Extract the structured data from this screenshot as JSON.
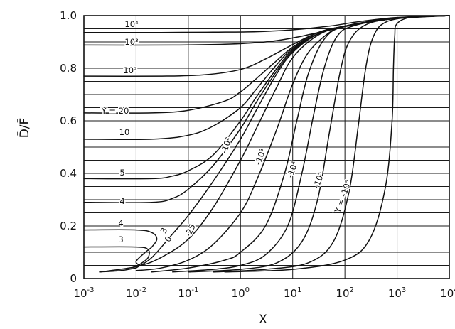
{
  "chart_data": {
    "type": "line",
    "title": "",
    "xlabel": "X",
    "ylabel": "D̄/F̄",
    "xscale": "log",
    "xlim": [
      0.001,
      10000
    ],
    "ylim": [
      0,
      1.0
    ],
    "grid": true,
    "x_ticks": [
      {
        "base": "10",
        "exp": "-3"
      },
      {
        "base": "10",
        "exp": "-2"
      },
      {
        "base": "10",
        "exp": "-1"
      },
      {
        "base": "10",
        "exp": "0"
      },
      {
        "base": "10",
        "exp": "1"
      },
      {
        "base": "10",
        "exp": "2"
      },
      {
        "base": "10",
        "exp": "3"
      },
      {
        "base": "10",
        "exp": "4"
      }
    ],
    "y_ticks": [
      "0",
      "0.2",
      "0.4",
      "0.6",
      "0.8",
      "1.0"
    ],
    "series": [
      {
        "label": "10⁴",
        "points": [
          [
            0.001,
            0.936
          ],
          [
            0.03,
            0.936
          ],
          [
            0.3,
            0.937
          ],
          [
            2,
            0.939
          ],
          [
            10,
            0.946
          ],
          [
            50,
            0.96
          ],
          [
            200,
            0.978
          ],
          [
            1000,
            0.993
          ],
          [
            10000,
            1.0
          ]
        ]
      },
      {
        "label": "10³",
        "points": [
          [
            0.001,
            0.888
          ],
          [
            0.05,
            0.888
          ],
          [
            0.5,
            0.891
          ],
          [
            3,
            0.9
          ],
          [
            10,
            0.915
          ],
          [
            30,
            0.935
          ],
          [
            100,
            0.958
          ],
          [
            500,
            0.985
          ],
          [
            10000,
            1.0
          ]
        ]
      },
      {
        "label": "10²",
        "points": [
          [
            0.001,
            0.77
          ],
          [
            0.03,
            0.77
          ],
          [
            0.2,
            0.775
          ],
          [
            1,
            0.795
          ],
          [
            3,
            0.835
          ],
          [
            10,
            0.89
          ],
          [
            30,
            0.935
          ],
          [
            100,
            0.96
          ],
          [
            1000,
            0.99
          ],
          [
            10000,
            1.0
          ]
        ]
      },
      {
        "label": "Y = 20",
        "points": [
          [
            0.001,
            0.63
          ],
          [
            0.02,
            0.63
          ],
          [
            0.1,
            0.64
          ],
          [
            0.5,
            0.675
          ],
          [
            1,
            0.71
          ],
          [
            2,
            0.76
          ],
          [
            5,
            0.83
          ],
          [
            10,
            0.88
          ],
          [
            30,
            0.935
          ],
          [
            100,
            0.96
          ],
          [
            1000,
            0.99
          ],
          [
            10000,
            1.0
          ]
        ]
      },
      {
        "label": "10",
        "points": [
          [
            0.001,
            0.53
          ],
          [
            0.02,
            0.53
          ],
          [
            0.1,
            0.545
          ],
          [
            0.3,
            0.58
          ],
          [
            1,
            0.65
          ],
          [
            2,
            0.72
          ],
          [
            5,
            0.815
          ],
          [
            10,
            0.875
          ],
          [
            30,
            0.93
          ],
          [
            100,
            0.96
          ],
          [
            1000,
            0.99
          ],
          [
            10000,
            1.0
          ]
        ]
      },
      {
        "label": "5",
        "points": [
          [
            0.001,
            0.38
          ],
          [
            0.02,
            0.38
          ],
          [
            0.05,
            0.39
          ],
          [
            0.1,
            0.41
          ],
          [
            0.3,
            0.47
          ],
          [
            1,
            0.6
          ],
          [
            2,
            0.69
          ],
          [
            5,
            0.8
          ],
          [
            10,
            0.87
          ],
          [
            30,
            0.93
          ],
          [
            100,
            0.96
          ],
          [
            1000,
            0.99
          ],
          [
            10000,
            1.0
          ]
        ]
      },
      {
        "label": "4",
        "points": [
          [
            0.001,
            0.29
          ],
          [
            0.02,
            0.29
          ],
          [
            0.05,
            0.305
          ],
          [
            0.1,
            0.34
          ],
          [
            0.3,
            0.43
          ],
          [
            1,
            0.57
          ],
          [
            2,
            0.67
          ],
          [
            5,
            0.79
          ],
          [
            10,
            0.865
          ],
          [
            30,
            0.93
          ],
          [
            100,
            0.96
          ],
          [
            1000,
            0.99
          ],
          [
            10000,
            1.0
          ]
        ]
      },
      {
        "label": "3",
        "points": [
          [
            0.01,
            0.04
          ],
          [
            0.02,
            0.08
          ],
          [
            0.05,
            0.17
          ],
          [
            0.1,
            0.24
          ],
          [
            0.3,
            0.37
          ],
          [
            1,
            0.53
          ],
          [
            2,
            0.64
          ],
          [
            5,
            0.78
          ],
          [
            10,
            0.86
          ],
          [
            30,
            0.93
          ],
          [
            100,
            0.96
          ],
          [
            1000,
            0.99
          ],
          [
            10000,
            1.0
          ]
        ]
      },
      {
        "label": "0",
        "points": [
          [
            0.002,
            0.025
          ],
          [
            0.01,
            0.045
          ],
          [
            0.03,
            0.08
          ],
          [
            0.1,
            0.15
          ],
          [
            0.3,
            0.27
          ],
          [
            1,
            0.45
          ],
          [
            2,
            0.57
          ],
          [
            5,
            0.73
          ],
          [
            10,
            0.84
          ],
          [
            30,
            0.925
          ],
          [
            100,
            0.96
          ],
          [
            1000,
            0.99
          ],
          [
            10000,
            1.0
          ]
        ]
      },
      {
        "label": "-25",
        "points": [
          [
            0.01,
            0.03
          ],
          [
            0.03,
            0.04
          ],
          [
            0.1,
            0.07
          ],
          [
            0.3,
            0.13
          ],
          [
            1,
            0.25
          ],
          [
            2,
            0.37
          ],
          [
            5,
            0.57
          ],
          [
            10,
            0.74
          ],
          [
            20,
            0.86
          ],
          [
            50,
            0.935
          ],
          [
            100,
            0.96
          ],
          [
            1000,
            0.99
          ],
          [
            10000,
            1.0
          ]
        ]
      },
      {
        "label": "-10²",
        "points": [
          [
            0.02,
            0.025
          ],
          [
            0.1,
            0.04
          ],
          [
            0.5,
            0.07
          ],
          [
            1,
            0.1
          ],
          [
            3,
            0.2
          ],
          [
            7,
            0.4
          ],
          [
            12,
            0.6
          ],
          [
            20,
            0.78
          ],
          [
            40,
            0.91
          ],
          [
            100,
            0.96
          ],
          [
            1000,
            0.99
          ],
          [
            10000,
            1.0
          ]
        ]
      },
      {
        "label": "-10³",
        "points": [
          [
            0.05,
            0.025
          ],
          [
            0.3,
            0.035
          ],
          [
            1,
            0.05
          ],
          [
            3,
            0.09
          ],
          [
            8,
            0.2
          ],
          [
            15,
            0.4
          ],
          [
            25,
            0.62
          ],
          [
            40,
            0.8
          ],
          [
            70,
            0.92
          ],
          [
            150,
            0.962
          ],
          [
            1000,
            0.99
          ],
          [
            10000,
            1.0
          ]
        ]
      },
      {
        "label": "-10⁴",
        "points": [
          [
            0.1,
            0.025
          ],
          [
            1,
            0.035
          ],
          [
            5,
            0.06
          ],
          [
            15,
            0.14
          ],
          [
            30,
            0.3
          ],
          [
            50,
            0.55
          ],
          [
            80,
            0.78
          ],
          [
            120,
            0.9
          ],
          [
            250,
            0.965
          ],
          [
            1000,
            0.99
          ],
          [
            10000,
            1.0
          ]
        ]
      },
      {
        "label": "-10⁵",
        "points": [
          [
            0.3,
            0.025
          ],
          [
            3,
            0.035
          ],
          [
            20,
            0.06
          ],
          [
            60,
            0.14
          ],
          [
            120,
            0.33
          ],
          [
            180,
            0.58
          ],
          [
            250,
            0.8
          ],
          [
            350,
            0.92
          ],
          [
            600,
            0.975
          ],
          [
            2000,
            0.995
          ],
          [
            10000,
            1.0
          ]
        ]
      },
      {
        "label": "Y = -10⁶",
        "points": [
          [
            0.5,
            0.025
          ],
          [
            10,
            0.035
          ],
          [
            100,
            0.07
          ],
          [
            300,
            0.15
          ],
          [
            600,
            0.35
          ],
          [
            800,
            0.6
          ],
          [
            850,
            0.8
          ],
          [
            900,
            0.92
          ],
          [
            1000,
            0.97
          ],
          [
            2000,
            0.995
          ],
          [
            10000,
            1.0
          ]
        ]
      },
      {
        "label": "4",
        "points": [
          [
            0.001,
            0.185
          ],
          [
            0.01,
            0.185
          ],
          [
            0.02,
            0.175
          ],
          [
            0.025,
            0.15
          ],
          [
            0.02,
            0.12
          ],
          [
            0.015,
            0.1
          ],
          [
            0.01,
            0.065
          ],
          [
            0.012,
            0.05
          ]
        ]
      },
      {
        "label": "3",
        "points": [
          [
            0.001,
            0.12
          ],
          [
            0.01,
            0.12
          ],
          [
            0.017,
            0.11
          ],
          [
            0.017,
            0.08
          ],
          [
            0.012,
            0.055
          ],
          [
            0.009,
            0.045
          ]
        ]
      },
      {
        "label": "",
        "points": [
          [
            0.002,
            0.025
          ],
          [
            0.005,
            0.03
          ],
          [
            0.01,
            0.04
          ]
        ]
      }
    ]
  }
}
